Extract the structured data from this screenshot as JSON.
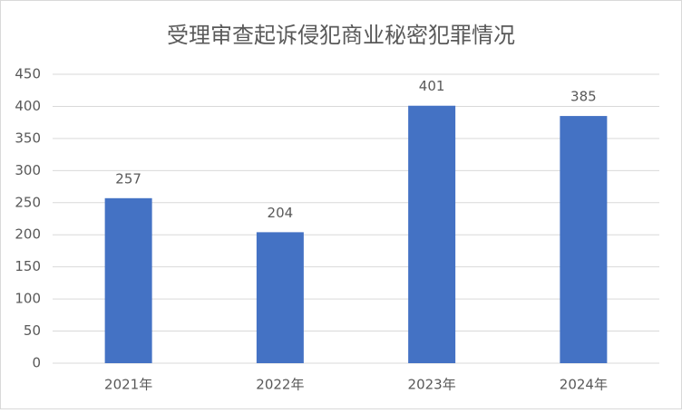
{
  "chart_data": {
    "type": "bar",
    "title": "受理审查起诉侵犯商业秘密犯罪情况",
    "categories": [
      "2021年",
      "2022年",
      "2023年",
      "2024年"
    ],
    "values": [
      257,
      204,
      401,
      385
    ],
    "color": "#4472c4",
    "ylim": [
      0,
      450
    ],
    "yticks": [
      0,
      50,
      100,
      150,
      200,
      250,
      300,
      350,
      400,
      450
    ],
    "grid": true
  }
}
